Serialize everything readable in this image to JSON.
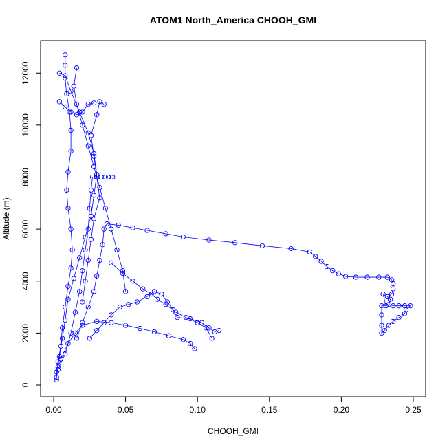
{
  "chart_data": {
    "type": "scatter",
    "title": "ATOM1 North_America CHOOH_GMI",
    "xlabel": "CHOOH_GMI",
    "ylabel": "Altitude (m)",
    "xlim": [
      0.0,
      0.25
    ],
    "ylim": [
      0,
      12800
    ],
    "xticks": [
      0.0,
      0.05,
      0.1,
      0.15,
      0.2,
      0.25
    ],
    "xtick_labels": [
      "0.00",
      "0.05",
      "0.10",
      "0.15",
      "0.20",
      "0.25"
    ],
    "yticks": [
      0,
      2000,
      4000,
      6000,
      8000,
      10000,
      12000
    ],
    "ytick_labels": [
      "0",
      "2000",
      "4000",
      "6000",
      "8000",
      "10000",
      "12000"
    ],
    "grid": false,
    "marker": "open-circle",
    "line_style": "solid-thin",
    "color": "#0000ff",
    "series": [
      {
        "values": [
          [
            0.002,
            200
          ],
          [
            0.002,
            500
          ],
          [
            0.003,
            900
          ],
          [
            0.005,
            1500
          ],
          [
            0.006,
            2200
          ],
          [
            0.008,
            3000
          ],
          [
            0.01,
            3800
          ],
          [
            0.012,
            4500
          ],
          [
            0.013,
            5200
          ],
          [
            0.012,
            6000
          ],
          [
            0.01,
            6800
          ],
          [
            0.009,
            7500
          ],
          [
            0.01,
            8200
          ],
          [
            0.012,
            9000
          ],
          [
            0.012,
            9800
          ],
          [
            0.011,
            10500
          ],
          [
            0.009,
            11200
          ],
          [
            0.008,
            11800
          ],
          [
            0.008,
            12300
          ],
          [
            0.008,
            12700
          ]
        ]
      },
      {
        "values": [
          [
            0.003,
            600
          ],
          [
            0.008,
            1200
          ],
          [
            0.012,
            2000
          ],
          [
            0.015,
            2800
          ],
          [
            0.018,
            3600
          ],
          [
            0.02,
            4400
          ],
          [
            0.022,
            5200
          ],
          [
            0.024,
            6000
          ],
          [
            0.025,
            6800
          ],
          [
            0.026,
            7500
          ],
          [
            0.027,
            8000
          ],
          [
            0.03,
            8000
          ],
          [
            0.033,
            8000
          ],
          [
            0.036,
            8000
          ],
          [
            0.038,
            8000
          ],
          [
            0.04,
            8000
          ],
          [
            0.041,
            8000
          ]
        ]
      },
      {
        "values": [
          [
            0.016,
            1800
          ],
          [
            0.02,
            2400
          ],
          [
            0.024,
            3000
          ],
          [
            0.028,
            3600
          ],
          [
            0.03,
            4200
          ],
          [
            0.032,
            4800
          ],
          [
            0.034,
            5400
          ],
          [
            0.035,
            6000
          ],
          [
            0.037,
            6200
          ],
          [
            0.045,
            6150
          ],
          [
            0.055,
            6050
          ],
          [
            0.065,
            5950
          ],
          [
            0.078,
            5820
          ],
          [
            0.09,
            5700
          ],
          [
            0.108,
            5580
          ],
          [
            0.126,
            5480
          ],
          [
            0.145,
            5360
          ],
          [
            0.165,
            5250
          ],
          [
            0.178,
            5120
          ],
          [
            0.182,
            4950
          ],
          [
            0.186,
            4760
          ],
          [
            0.19,
            4560
          ],
          [
            0.194,
            4400
          ],
          [
            0.198,
            4280
          ],
          [
            0.203,
            4180
          ],
          [
            0.21,
            4150
          ],
          [
            0.218,
            4150
          ],
          [
            0.226,
            4150
          ],
          [
            0.232,
            4150
          ],
          [
            0.235,
            4050
          ],
          [
            0.236,
            3900
          ],
          [
            0.236,
            3700
          ],
          [
            0.235,
            3500
          ],
          [
            0.232,
            3400
          ],
          [
            0.234,
            3300
          ],
          [
            0.233,
            3100
          ],
          [
            0.236,
            3050
          ],
          [
            0.24,
            3050
          ],
          [
            0.244,
            3050
          ],
          [
            0.248,
            3050
          ],
          [
            0.245,
            2900
          ],
          [
            0.244,
            2750
          ],
          [
            0.24,
            2600
          ],
          [
            0.236,
            2450
          ],
          [
            0.233,
            2300
          ],
          [
            0.23,
            2100
          ],
          [
            0.228,
            2000
          ],
          [
            0.228,
            2300
          ],
          [
            0.228,
            2700
          ],
          [
            0.228,
            3050
          ],
          [
            0.231,
            3050
          ],
          [
            0.229,
            3500
          ]
        ]
      },
      {
        "values": [
          [
            0.025,
            1800
          ],
          [
            0.03,
            2100
          ],
          [
            0.035,
            2400
          ],
          [
            0.04,
            2700
          ],
          [
            0.046,
            3000
          ],
          [
            0.052,
            3100
          ],
          [
            0.058,
            3200
          ],
          [
            0.065,
            3400
          ],
          [
            0.07,
            3600
          ],
          [
            0.075,
            3500
          ],
          [
            0.079,
            3200
          ],
          [
            0.083,
            2900
          ],
          [
            0.086,
            2600
          ],
          [
            0.095,
            2550
          ],
          [
            0.103,
            2400
          ],
          [
            0.108,
            2200
          ],
          [
            0.112,
            2050
          ],
          [
            0.115,
            2100
          ]
        ]
      },
      {
        "values": [
          [
            0.005,
            1000
          ],
          [
            0.01,
            1600
          ],
          [
            0.015,
            2000
          ],
          [
            0.02,
            2300
          ],
          [
            0.03,
            2450
          ],
          [
            0.04,
            2400
          ],
          [
            0.05,
            2300
          ],
          [
            0.06,
            2180
          ],
          [
            0.07,
            2050
          ],
          [
            0.08,
            1900
          ],
          [
            0.09,
            1750
          ],
          [
            0.095,
            1600
          ],
          [
            0.098,
            1400
          ]
        ]
      },
      {
        "values": [
          [
            0.04,
            4700
          ],
          [
            0.048,
            4300
          ],
          [
            0.055,
            4000
          ],
          [
            0.062,
            3700
          ],
          [
            0.068,
            3500
          ],
          [
            0.072,
            3300
          ],
          [
            0.078,
            3100
          ],
          [
            0.085,
            2800
          ],
          [
            0.092,
            2600
          ],
          [
            0.1,
            2400
          ],
          [
            0.106,
            2200
          ],
          [
            0.11,
            1800
          ]
        ]
      },
      {
        "values": [
          [
            0.004,
            10900
          ],
          [
            0.008,
            10700
          ],
          [
            0.012,
            10500
          ],
          [
            0.016,
            10400
          ],
          [
            0.02,
            10500
          ],
          [
            0.024,
            10800
          ],
          [
            0.028,
            10850
          ]
        ]
      },
      {
        "values": [
          [
            0.016,
            12200
          ],
          [
            0.014,
            11500
          ],
          [
            0.016,
            10800
          ],
          [
            0.02,
            10000
          ],
          [
            0.024,
            9200
          ],
          [
            0.028,
            8400
          ],
          [
            0.032,
            7600
          ],
          [
            0.036,
            6800
          ],
          [
            0.04,
            6000
          ],
          [
            0.044,
            5200
          ],
          [
            0.048,
            4400
          ],
          [
            0.05,
            3600
          ]
        ]
      },
      {
        "values": [
          [
            0.02,
            3200
          ],
          [
            0.022,
            4000
          ],
          [
            0.024,
            4800
          ],
          [
            0.026,
            5600
          ],
          [
            0.028,
            6400
          ],
          [
            0.032,
            7200
          ],
          [
            0.03,
            8000
          ],
          [
            0.028,
            8800
          ],
          [
            0.026,
            9600
          ],
          [
            0.03,
            10400
          ],
          [
            0.032,
            10900
          ],
          [
            0.035,
            10800
          ]
        ]
      },
      {
        "values": [
          [
            0.002,
            300
          ],
          [
            0.003,
            700
          ],
          [
            0.004,
            1100
          ],
          [
            0.006,
            1800
          ],
          [
            0.008,
            2500
          ],
          [
            0.01,
            3300
          ],
          [
            0.014,
            4100
          ],
          [
            0.018,
            4900
          ],
          [
            0.022,
            5700
          ],
          [
            0.026,
            6500
          ],
          [
            0.028,
            7300
          ],
          [
            0.03,
            8100
          ],
          [
            0.028,
            8900
          ],
          [
            0.024,
            9700
          ],
          [
            0.018,
            10500
          ],
          [
            0.012,
            11300
          ],
          [
            0.008,
            11900
          ],
          [
            0.004,
            12000
          ]
        ]
      }
    ]
  }
}
